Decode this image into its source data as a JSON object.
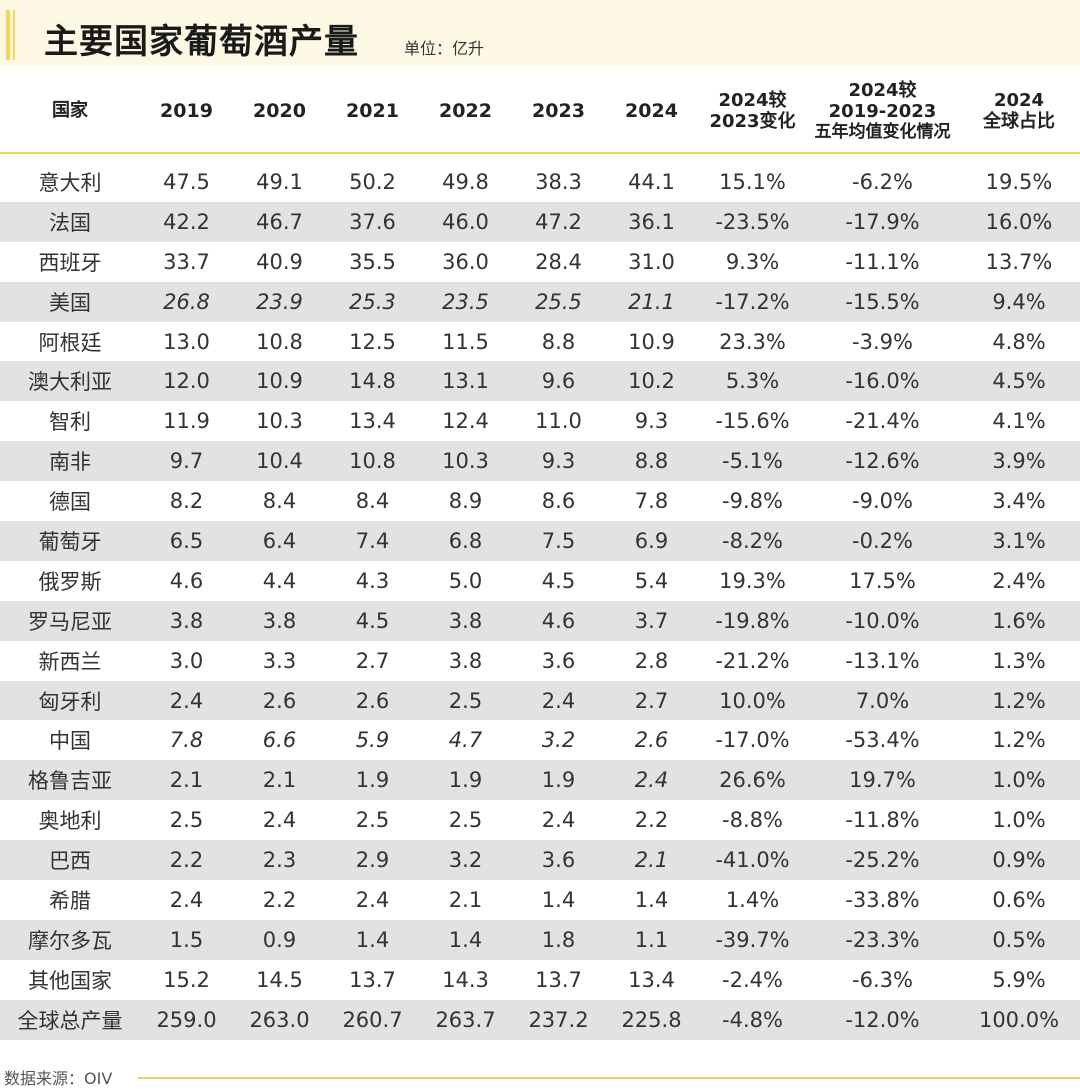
{
  "title": "主要国家葡萄酒产量",
  "unit": "单位：亿升",
  "source": "数据来源：OIV",
  "chart_data": {
    "type": "table",
    "title": "主要国家葡萄酒产量",
    "headers": {
      "country": "国家",
      "y2019": "2019",
      "y2020": "2020",
      "y2021": "2021",
      "y2022": "2022",
      "y2023": "2023",
      "y2024": "2024",
      "chg_a": "2024较",
      "chg_b": "2023变化",
      "avg_a": "2024较",
      "avg_b": "2019-2023",
      "avg_c": "五年均值变化情况",
      "share_a": "2024",
      "share_b": "全球占比"
    },
    "rows": [
      {
        "country": "意大利",
        "y2019": "47.5",
        "y2020": "49.1",
        "y2021": "50.2",
        "y2022": "49.8",
        "y2023": "38.3",
        "y2024": "44.1",
        "chg": "15.1%",
        "avg": "-6.2%",
        "share": "19.5%"
      },
      {
        "country": "法国",
        "y2019": "42.2",
        "y2020": "46.7",
        "y2021": "37.6",
        "y2022": "46.0",
        "y2023": "47.2",
        "y2024": "36.1",
        "chg": "-23.5%",
        "avg": "-17.9%",
        "share": "16.0%"
      },
      {
        "country": "西班牙",
        "y2019": "33.7",
        "y2020": "40.9",
        "y2021": "35.5",
        "y2022": "36.0",
        "y2023": "28.4",
        "y2024": "31.0",
        "chg": "9.3%",
        "avg": "-11.1%",
        "share": "13.7%"
      },
      {
        "country": "美国",
        "y2019": "26.8",
        "y2020": "23.9",
        "y2021": "25.3",
        "y2022": "23.5",
        "y2023": "25.5",
        "y2024": "21.1",
        "chg": "-17.2%",
        "avg": "-15.5%",
        "share": "9.4%"
      },
      {
        "country": "阿根廷",
        "y2019": "13.0",
        "y2020": "10.8",
        "y2021": "12.5",
        "y2022": "11.5",
        "y2023": "8.8",
        "y2024": "10.9",
        "chg": "23.3%",
        "avg": "-3.9%",
        "share": "4.8%"
      },
      {
        "country": "澳大利亚",
        "y2019": "12.0",
        "y2020": "10.9",
        "y2021": "14.8",
        "y2022": "13.1",
        "y2023": "9.6",
        "y2024": "10.2",
        "chg": "5.3%",
        "avg": "-16.0%",
        "share": "4.5%"
      },
      {
        "country": "智利",
        "y2019": "11.9",
        "y2020": "10.3",
        "y2021": "13.4",
        "y2022": "12.4",
        "y2023": "11.0",
        "y2024": "9.3",
        "chg": "-15.6%",
        "avg": "-21.4%",
        "share": "4.1%"
      },
      {
        "country": "南非",
        "y2019": "9.7",
        "y2020": "10.4",
        "y2021": "10.8",
        "y2022": "10.3",
        "y2023": "9.3",
        "y2024": "8.8",
        "chg": "-5.1%",
        "avg": "-12.6%",
        "share": "3.9%"
      },
      {
        "country": "德国",
        "y2019": "8.2",
        "y2020": "8.4",
        "y2021": "8.4",
        "y2022": "8.9",
        "y2023": "8.6",
        "y2024": "7.8",
        "chg": "-9.8%",
        "avg": "-9.0%",
        "share": "3.4%"
      },
      {
        "country": "葡萄牙",
        "y2019": "6.5",
        "y2020": "6.4",
        "y2021": "7.4",
        "y2022": "6.8",
        "y2023": "7.5",
        "y2024": "6.9",
        "chg": "-8.2%",
        "avg": "-0.2%",
        "share": "3.1%"
      },
      {
        "country": "俄罗斯",
        "y2019": "4.6",
        "y2020": "4.4",
        "y2021": "4.3",
        "y2022": "5.0",
        "y2023": "4.5",
        "y2024": "5.4",
        "chg": "19.3%",
        "avg": "17.5%",
        "share": "2.4%"
      },
      {
        "country": "罗马尼亚",
        "y2019": "3.8",
        "y2020": "3.8",
        "y2021": "4.5",
        "y2022": "3.8",
        "y2023": "4.6",
        "y2024": "3.7",
        "chg": "-19.8%",
        "avg": "-10.0%",
        "share": "1.6%"
      },
      {
        "country": "新西兰",
        "y2019": "3.0",
        "y2020": "3.3",
        "y2021": "2.7",
        "y2022": "3.8",
        "y2023": "3.6",
        "y2024": "2.8",
        "chg": "-21.2%",
        "avg": "-13.1%",
        "share": "1.3%"
      },
      {
        "country": "匈牙利",
        "y2019": "2.4",
        "y2020": "2.6",
        "y2021": "2.6",
        "y2022": "2.5",
        "y2023": "2.4",
        "y2024": "2.7",
        "chg": "10.0%",
        "avg": "7.0%",
        "share": "1.2%"
      },
      {
        "country": "中国",
        "y2019": "7.8",
        "y2020": "6.6",
        "y2021": "5.9",
        "y2022": "4.7",
        "y2023": "3.2",
        "y2024": "2.6",
        "chg": "-17.0%",
        "avg": "-53.4%",
        "share": "1.2%"
      },
      {
        "country": "格鲁吉亚",
        "y2019": "2.1",
        "y2020": "2.1",
        "y2021": "1.9",
        "y2022": "1.9",
        "y2023": "1.9",
        "y2024": "2.4",
        "chg": "26.6%",
        "avg": "19.7%",
        "share": "1.0%"
      },
      {
        "country": "奥地利",
        "y2019": "2.5",
        "y2020": "2.4",
        "y2021": "2.5",
        "y2022": "2.5",
        "y2023": "2.4",
        "y2024": "2.2",
        "chg": "-8.8%",
        "avg": "-11.8%",
        "share": "1.0%"
      },
      {
        "country": "巴西",
        "y2019": "2.2",
        "y2020": "2.3",
        "y2021": "2.9",
        "y2022": "3.2",
        "y2023": "3.6",
        "y2024": "2.1",
        "chg": "-41.0%",
        "avg": "-25.2%",
        "share": "0.9%"
      },
      {
        "country": "希腊",
        "y2019": "2.4",
        "y2020": "2.2",
        "y2021": "2.4",
        "y2022": "2.1",
        "y2023": "1.4",
        "y2024": "1.4",
        "chg": "1.4%",
        "avg": "-33.8%",
        "share": "0.6%"
      },
      {
        "country": "摩尔多瓦",
        "y2019": "1.5",
        "y2020": "0.9",
        "y2021": "1.4",
        "y2022": "1.4",
        "y2023": "1.8",
        "y2024": "1.1",
        "chg": "-39.7%",
        "avg": "-23.3%",
        "share": "0.5%"
      },
      {
        "country": "其他国家",
        "y2019": "15.2",
        "y2020": "14.5",
        "y2021": "13.7",
        "y2022": "14.3",
        "y2023": "13.7",
        "y2024": "13.4",
        "chg": "-2.4%",
        "avg": "-6.3%",
        "share": "5.9%"
      },
      {
        "country": "全球总产量",
        "y2019": "259.0",
        "y2020": "263.0",
        "y2021": "260.7",
        "y2022": "263.7",
        "y2023": "237.2",
        "y2024": "225.8",
        "chg": "-4.8%",
        "avg": "-12.0%",
        "share": "100.0%"
      }
    ]
  }
}
